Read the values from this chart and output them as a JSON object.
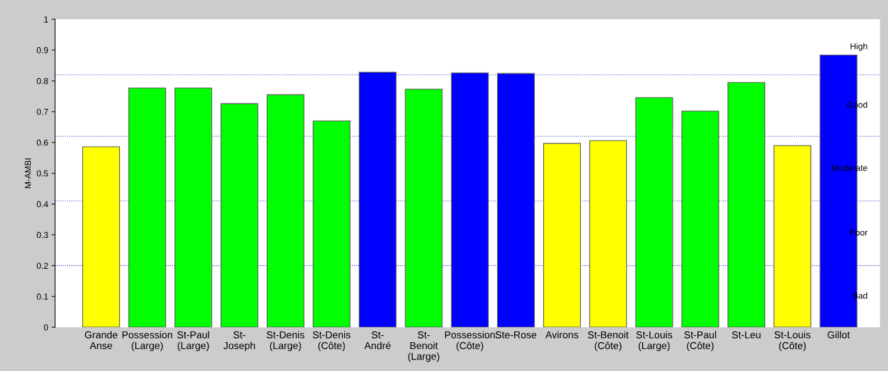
{
  "chart_data": {
    "type": "bar",
    "ylabel": "M-AMBI",
    "categories": [
      "Grande\nAnse",
      "Possession\n(Large)",
      "St-Paul\n(Large)",
      "St-\nJoseph",
      "St-Denis\n(Large)",
      "St-Denis\n(Côte)",
      "St-\nAndré",
      "St-\nBenoit\n(Large)",
      "Possession\n(Côte)",
      "Ste-Rose",
      "Avirons",
      "St-Benoit\n(Côte)",
      "St-Louis\n(Large)",
      "St-Paul\n(Côte)",
      "St-Leu",
      "St-Louis\n(Côte)",
      "Gillot"
    ],
    "values": [
      0.586,
      0.777,
      0.777,
      0.726,
      0.755,
      0.67,
      0.828,
      0.773,
      0.826,
      0.824,
      0.597,
      0.606,
      0.746,
      0.702,
      0.795,
      0.59,
      0.884
    ],
    "colors": [
      "#ffff00",
      "#00ff00",
      "#00ff00",
      "#00ff00",
      "#00ff00",
      "#00ff00",
      "#0000ff",
      "#00ff00",
      "#0000ff",
      "#0000ff",
      "#ffff00",
      "#ffff00",
      "#00ff00",
      "#00ff00",
      "#00ff00",
      "#ffff00",
      "#0000ff"
    ],
    "ylim": [
      0,
      1
    ],
    "yticks": [
      0,
      0.1,
      0.2,
      0.3,
      0.4,
      0.5,
      0.6,
      0.7,
      0.8,
      0.9,
      1
    ],
    "ref_lines": [
      {
        "axis": "y",
        "value": 0.82,
        "color": "#3333cc",
        "line_style": "dotted"
      },
      {
        "axis": "y",
        "value": 0.62,
        "color": "#3333cc",
        "line_style": "dotted"
      },
      {
        "axis": "y",
        "value": 0.41,
        "color": "#3333cc",
        "line_style": "dotted"
      },
      {
        "axis": "y",
        "value": 0.2,
        "color": "#3333cc",
        "line_style": "dotted"
      }
    ],
    "annotations": [
      "High",
      "Good",
      "Moderate",
      "Poor",
      "Bad"
    ],
    "grid": false,
    "legend": false
  }
}
